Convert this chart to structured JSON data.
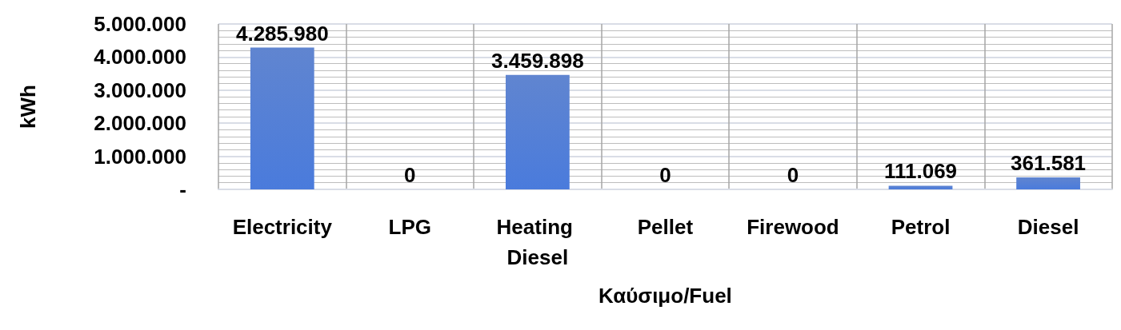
{
  "chart_data": {
    "type": "bar",
    "xlabel": "Καύσιμο/Fuel",
    "ylabel": "kWh",
    "categories": [
      "Electricity",
      "LPG",
      "Heating Diesel",
      "Pellet",
      "Firewood",
      "Petrol",
      "Diesel"
    ],
    "values": [
      4285980,
      0,
      3459898,
      0,
      0,
      111069,
      361581
    ],
    "value_labels": [
      "4.285.980",
      "0",
      "3.459.898",
      "0",
      "0",
      "111.069",
      "361.581"
    ],
    "color": "#4470c8",
    "ylim": [
      0,
      5000000
    ],
    "yticks": [
      {
        "value": 0,
        "label": "-"
      },
      {
        "value": 1000000,
        "label": "1.000.000"
      },
      {
        "value": 2000000,
        "label": "2.000.000"
      },
      {
        "value": 3000000,
        "label": "3.000.000"
      },
      {
        "value": 4000000,
        "label": "4.000.000"
      },
      {
        "value": 5000000,
        "label": "5.000.000"
      }
    ],
    "grid": true
  }
}
